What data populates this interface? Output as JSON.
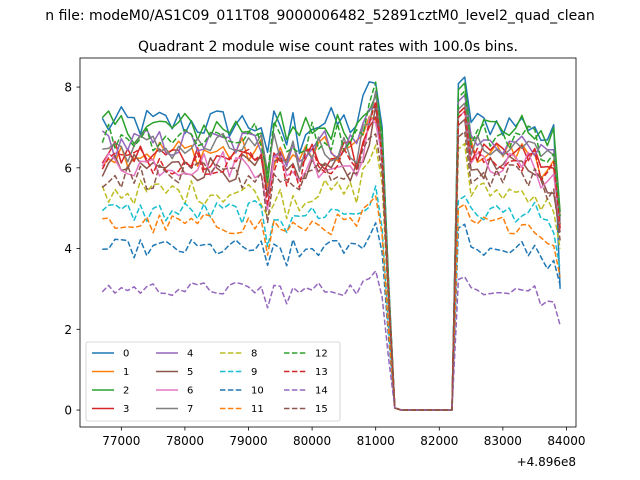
{
  "chart_data": {
    "type": "line",
    "suptitle": "n file: modeM0/AS1C09_011T08_9000006482_52891cztM0_level2_quad_clean",
    "title": "Quadrant 2 module wise count rates with 100.0s bins.",
    "xlabel": "",
    "ylabel": "",
    "x_offset_label": "+4.896e8",
    "xlim": [
      76350,
      84150
    ],
    "ylim": [
      -0.42,
      8.72
    ],
    "x_ticks": [
      77000,
      78000,
      79000,
      80000,
      81000,
      82000,
      83000,
      84000
    ],
    "x_tick_labels": [
      "77000",
      "78000",
      "79000",
      "80000",
      "81000",
      "82000",
      "83000",
      "84000"
    ],
    "y_ticks": [
      0,
      2,
      4,
      6,
      8
    ],
    "y_tick_labels": [
      "0",
      "2",
      "4",
      "6",
      "8"
    ],
    "legend_position": "lower-left",
    "legend_columns": 4,
    "time_bins": {
      "first_segment": {
        "start": 76700,
        "end": 81000,
        "step": 100
      },
      "dropout_times": [
        81100,
        81200,
        81300,
        81400,
        81500,
        81600,
        81700,
        81800,
        81900,
        82000,
        82100,
        82200
      ],
      "dropout_values": [
        6.5,
        3.2,
        0.05,
        0.0,
        0.0,
        0.0,
        0.0,
        0.0,
        0.0,
        0.0,
        0.0,
        0.0
      ],
      "second_segment": {
        "start": 82300,
        "end": 83900,
        "step": 100
      }
    },
    "series": [
      {
        "name": "0",
        "color": "#1f77b4",
        "dash": "solid",
        "level": 7.1,
        "peak": 8.25,
        "end": 3.0
      },
      {
        "name": "1",
        "color": "#ff7f0e",
        "dash": "solid",
        "level": 6.4,
        "peak": 7.5,
        "end": 4.6
      },
      {
        "name": "2",
        "color": "#2ca02c",
        "dash": "solid",
        "level": 7.0,
        "peak": 8.1,
        "end": 4.9
      },
      {
        "name": "3",
        "color": "#d62728",
        "dash": "solid",
        "level": 6.3,
        "peak": 7.5,
        "end": 4.8
      },
      {
        "name": "4",
        "color": "#9467bd",
        "dash": "solid",
        "level": 6.6,
        "peak": 7.8,
        "end": 4.7
      },
      {
        "name": "5",
        "color": "#8c564b",
        "dash": "solid",
        "level": 6.0,
        "peak": 7.2,
        "end": 4.4
      },
      {
        "name": "6",
        "color": "#e377c2",
        "dash": "solid",
        "level": 6.1,
        "peak": 7.4,
        "end": 4.5
      },
      {
        "name": "7",
        "color": "#7f7f7f",
        "dash": "solid",
        "level": 6.5,
        "peak": 7.6,
        "end": 4.6
      },
      {
        "name": "8",
        "color": "#bcbd22",
        "dash": "dashed",
        "level": 5.4,
        "peak": 6.6,
        "end": 4.0
      },
      {
        "name": "9",
        "color": "#17becf",
        "dash": "dashed",
        "level": 4.9,
        "peak": 5.3,
        "end": 3.5
      },
      {
        "name": "10",
        "color": "#1f77b4",
        "dash": "dashed",
        "level": 4.0,
        "peak": 4.6,
        "end": 3.1
      },
      {
        "name": "11",
        "color": "#ff7f0e",
        "dash": "dashed",
        "level": 4.6,
        "peak": 5.1,
        "end": 3.3
      },
      {
        "name": "12",
        "color": "#2ca02c",
        "dash": "dashed",
        "level": 6.8,
        "peak": 7.9,
        "end": 4.8
      },
      {
        "name": "13",
        "color": "#d62728",
        "dash": "dashed",
        "level": 6.2,
        "peak": 7.4,
        "end": 4.5
      },
      {
        "name": "14",
        "color": "#9467bd",
        "dash": "dashed",
        "level": 3.0,
        "peak": 3.3,
        "end": 2.1
      },
      {
        "name": "15",
        "color": "#8c564b",
        "dash": "dashed",
        "level": 5.8,
        "peak": 6.9,
        "end": 4.2
      }
    ]
  }
}
